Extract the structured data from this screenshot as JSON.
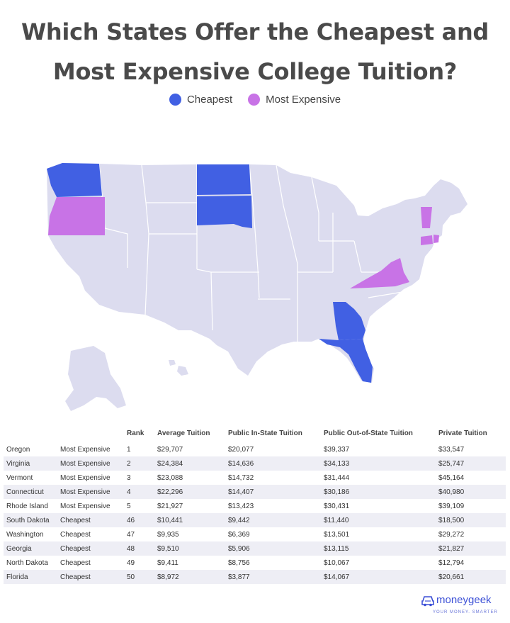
{
  "title_line1": "Which States Offer the Cheapest and",
  "title_line2": "Most Expensive College Tuition?",
  "legend": [
    {
      "label": "Cheapest",
      "color": "#4160e3"
    },
    {
      "label": "Most Expensive",
      "color": "#c873e6"
    }
  ],
  "colors": {
    "base_state": "#dcdcef",
    "cheapest": "#4160e3",
    "most_expensive": "#c873e6",
    "brand": "#3b4fd6"
  },
  "table": {
    "headers": [
      "",
      "",
      "Rank",
      "Average Tuition",
      "Public In-State Tuition",
      "Public Out-of-State Tuition",
      "Private Tuition"
    ],
    "rows": [
      [
        "Oregon",
        "Most Expensive",
        "1",
        "$29,707",
        "$20,077",
        "$39,337",
        "$33,547"
      ],
      [
        "Virginia",
        "Most Expensive",
        "2",
        "$24,384",
        "$14,636",
        "$34,133",
        "$25,747"
      ],
      [
        "Vermont",
        "Most Expensive",
        "3",
        "$23,088",
        "$14,732",
        "$31,444",
        "$45,164"
      ],
      [
        "Connecticut",
        "Most Expensive",
        "4",
        "$22,296",
        "$14,407",
        "$30,186",
        "$40,980"
      ],
      [
        "Rhode Island",
        "Most Expensive",
        "5",
        "$21,927",
        "$13,423",
        "$30,431",
        "$39,109"
      ],
      [
        "South Dakota",
        "Cheapest",
        "46",
        "$10,441",
        "$9,442",
        "$11,440",
        "$18,500"
      ],
      [
        "Washington",
        "Cheapest",
        "47",
        "$9,935",
        "$6,369",
        "$13,501",
        "$29,272"
      ],
      [
        "Georgia",
        "Cheapest",
        "48",
        "$9,510",
        "$5,906",
        "$13,115",
        "$21,827"
      ],
      [
        "North Dakota",
        "Cheapest",
        "49",
        "$9,411",
        "$8,756",
        "$10,067",
        "$12,794"
      ],
      [
        "Florida",
        "Cheapest",
        "50",
        "$8,972",
        "$3,877",
        "$14,067",
        "$20,661"
      ]
    ]
  },
  "logo": {
    "name": "moneygeek",
    "tagline": "YOUR MONEY. SMARTER"
  }
}
